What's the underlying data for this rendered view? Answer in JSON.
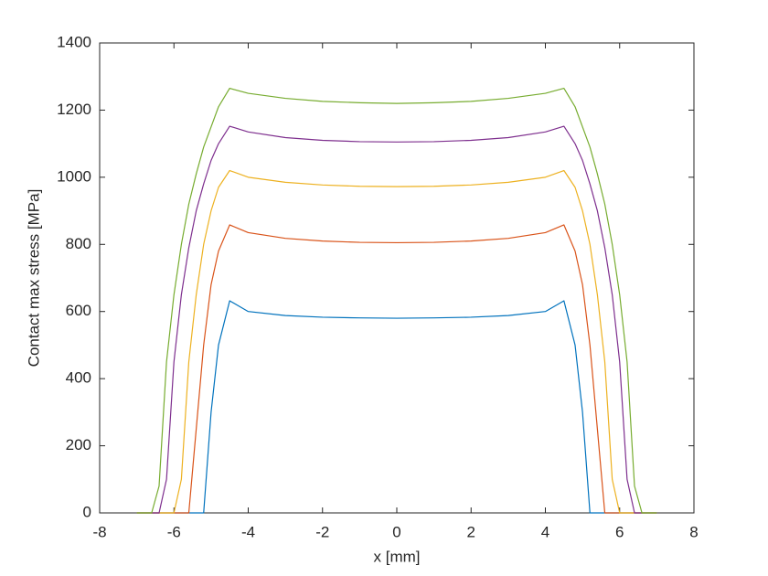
{
  "chart_data": {
    "type": "line",
    "xlabel": "x [mm]",
    "ylabel": "Contact max stress [MPa]",
    "x": [
      -7,
      -6.6,
      -6.4,
      -6.2,
      -6,
      -5.8,
      -5.6,
      -5.4,
      -5.2,
      -5,
      -4.8,
      -4.5,
      -4,
      -3,
      -2,
      -1,
      0,
      1,
      2,
      3,
      4,
      4.5,
      4.8,
      5,
      5.2,
      5.4,
      5.6,
      5.8,
      6,
      6.2,
      6.4,
      6.6,
      7
    ],
    "series": [
      {
        "color": "#0072BD",
        "values": [
          0,
          0,
          0,
          0,
          0,
          0,
          0,
          0,
          0,
          300,
          500,
          632,
          600,
          588,
          583,
          581,
          580,
          581,
          583,
          588,
          600,
          632,
          500,
          300,
          0,
          0,
          0,
          0,
          0,
          0,
          0,
          0,
          0
        ]
      },
      {
        "color": "#D95319",
        "values": [
          0,
          0,
          0,
          0,
          0,
          0,
          0,
          250,
          500,
          680,
          780,
          858,
          835,
          818,
          810,
          806,
          805,
          806,
          810,
          818,
          835,
          858,
          780,
          680,
          500,
          250,
          0,
          0,
          0,
          0,
          0,
          0,
          0
        ]
      },
      {
        "color": "#EDB120",
        "values": [
          0,
          0,
          0,
          0,
          0,
          100,
          450,
          650,
          800,
          900,
          970,
          1020,
          1000,
          985,
          977,
          973,
          972,
          973,
          977,
          985,
          1000,
          1020,
          970,
          900,
          800,
          650,
          450,
          100,
          0,
          0,
          0,
          0,
          0
        ]
      },
      {
        "color": "#7E2F8E",
        "values": [
          0,
          0,
          0,
          100,
          450,
          650,
          790,
          900,
          980,
          1050,
          1100,
          1152,
          1135,
          1118,
          1110,
          1106,
          1105,
          1106,
          1110,
          1118,
          1135,
          1152,
          1100,
          1050,
          980,
          900,
          790,
          650,
          450,
          100,
          0,
          0,
          0
        ]
      },
      {
        "color": "#77AC30",
        "values": [
          0,
          0,
          80,
          450,
          650,
          800,
          920,
          1010,
          1090,
          1150,
          1210,
          1265,
          1250,
          1235,
          1226,
          1222,
          1220,
          1222,
          1226,
          1235,
          1250,
          1265,
          1210,
          1150,
          1090,
          1010,
          920,
          800,
          650,
          450,
          80,
          0,
          0
        ]
      }
    ],
    "xlim": [
      -8,
      8
    ],
    "xticks": [
      -8,
      -6,
      -4,
      -2,
      0,
      2,
      4,
      6,
      8
    ],
    "ylim": [
      0,
      1400
    ],
    "yticks": [
      0,
      200,
      400,
      600,
      800,
      1000,
      1200,
      1400
    ],
    "grid": false
  }
}
